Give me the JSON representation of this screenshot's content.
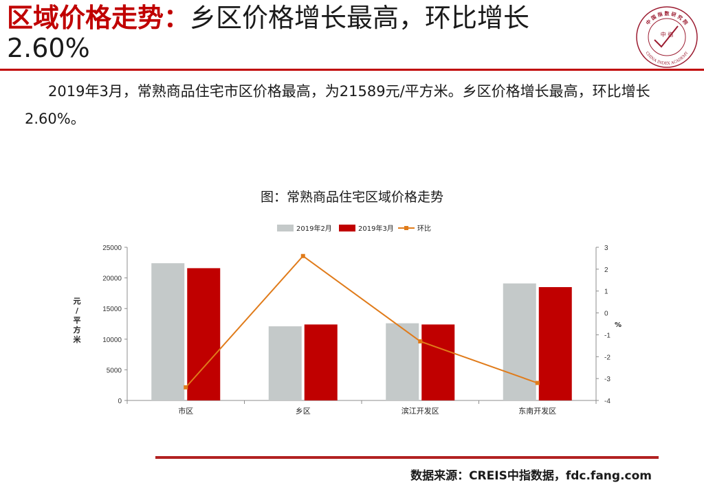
{
  "header": {
    "title_bold": "区域价格走势",
    "title_colon": "：",
    "title_rest": "乡区价格增长最高，环比增长",
    "title_line2": "2.60%",
    "logo_top_text": "中 国 指 数 研 究 院",
    "logo_center_text": "中   指",
    "logo_bottom_text": "CHINA INDEX ACADEMY",
    "logo_icon": "china-index-academy-seal"
  },
  "summary": "2019年3月，常熟商品住宅市区价格最高，为21589元/平方米。乡区价格增长最高，环比增长2.60%。",
  "chart_title": "图：常熟商品住宅区域价格走势",
  "chart_data": {
    "type": "bar",
    "title": "图：常熟商品住宅区域价格走势",
    "categories": [
      "市区",
      "乡区",
      "滨江开发区",
      "东南开发区"
    ],
    "series": [
      {
        "name": "2019年2月",
        "type": "bar",
        "axis": "left",
        "color": "#c4c9c9",
        "values": [
          22400,
          12100,
          12600,
          19100
        ]
      },
      {
        "name": "2019年3月",
        "type": "bar",
        "axis": "left",
        "color": "#c00000",
        "values": [
          21589,
          12400,
          12400,
          18500
        ]
      },
      {
        "name": "环比",
        "type": "line",
        "axis": "right",
        "color": "#e07b1a",
        "values": [
          -3.4,
          2.6,
          -1.3,
          -3.2
        ]
      }
    ],
    "y_left": {
      "label": "元/平方米",
      "min": 0,
      "max": 25000,
      "ticks": [
        0,
        5000,
        10000,
        15000,
        20000,
        25000
      ]
    },
    "y_right": {
      "label": "%",
      "min": -4,
      "max": 3,
      "ticks": [
        -4,
        -3,
        -2,
        -1,
        0,
        1,
        2,
        3
      ]
    },
    "legend": "top-center",
    "grid": false
  },
  "footer": {
    "source": "数据来源：CREIS中指数据，fdc.fang.com"
  },
  "colors": {
    "accent": "#c00000",
    "rule": "#b22222",
    "line": "#e07b1a",
    "bar_prev": "#c4c9c9"
  }
}
